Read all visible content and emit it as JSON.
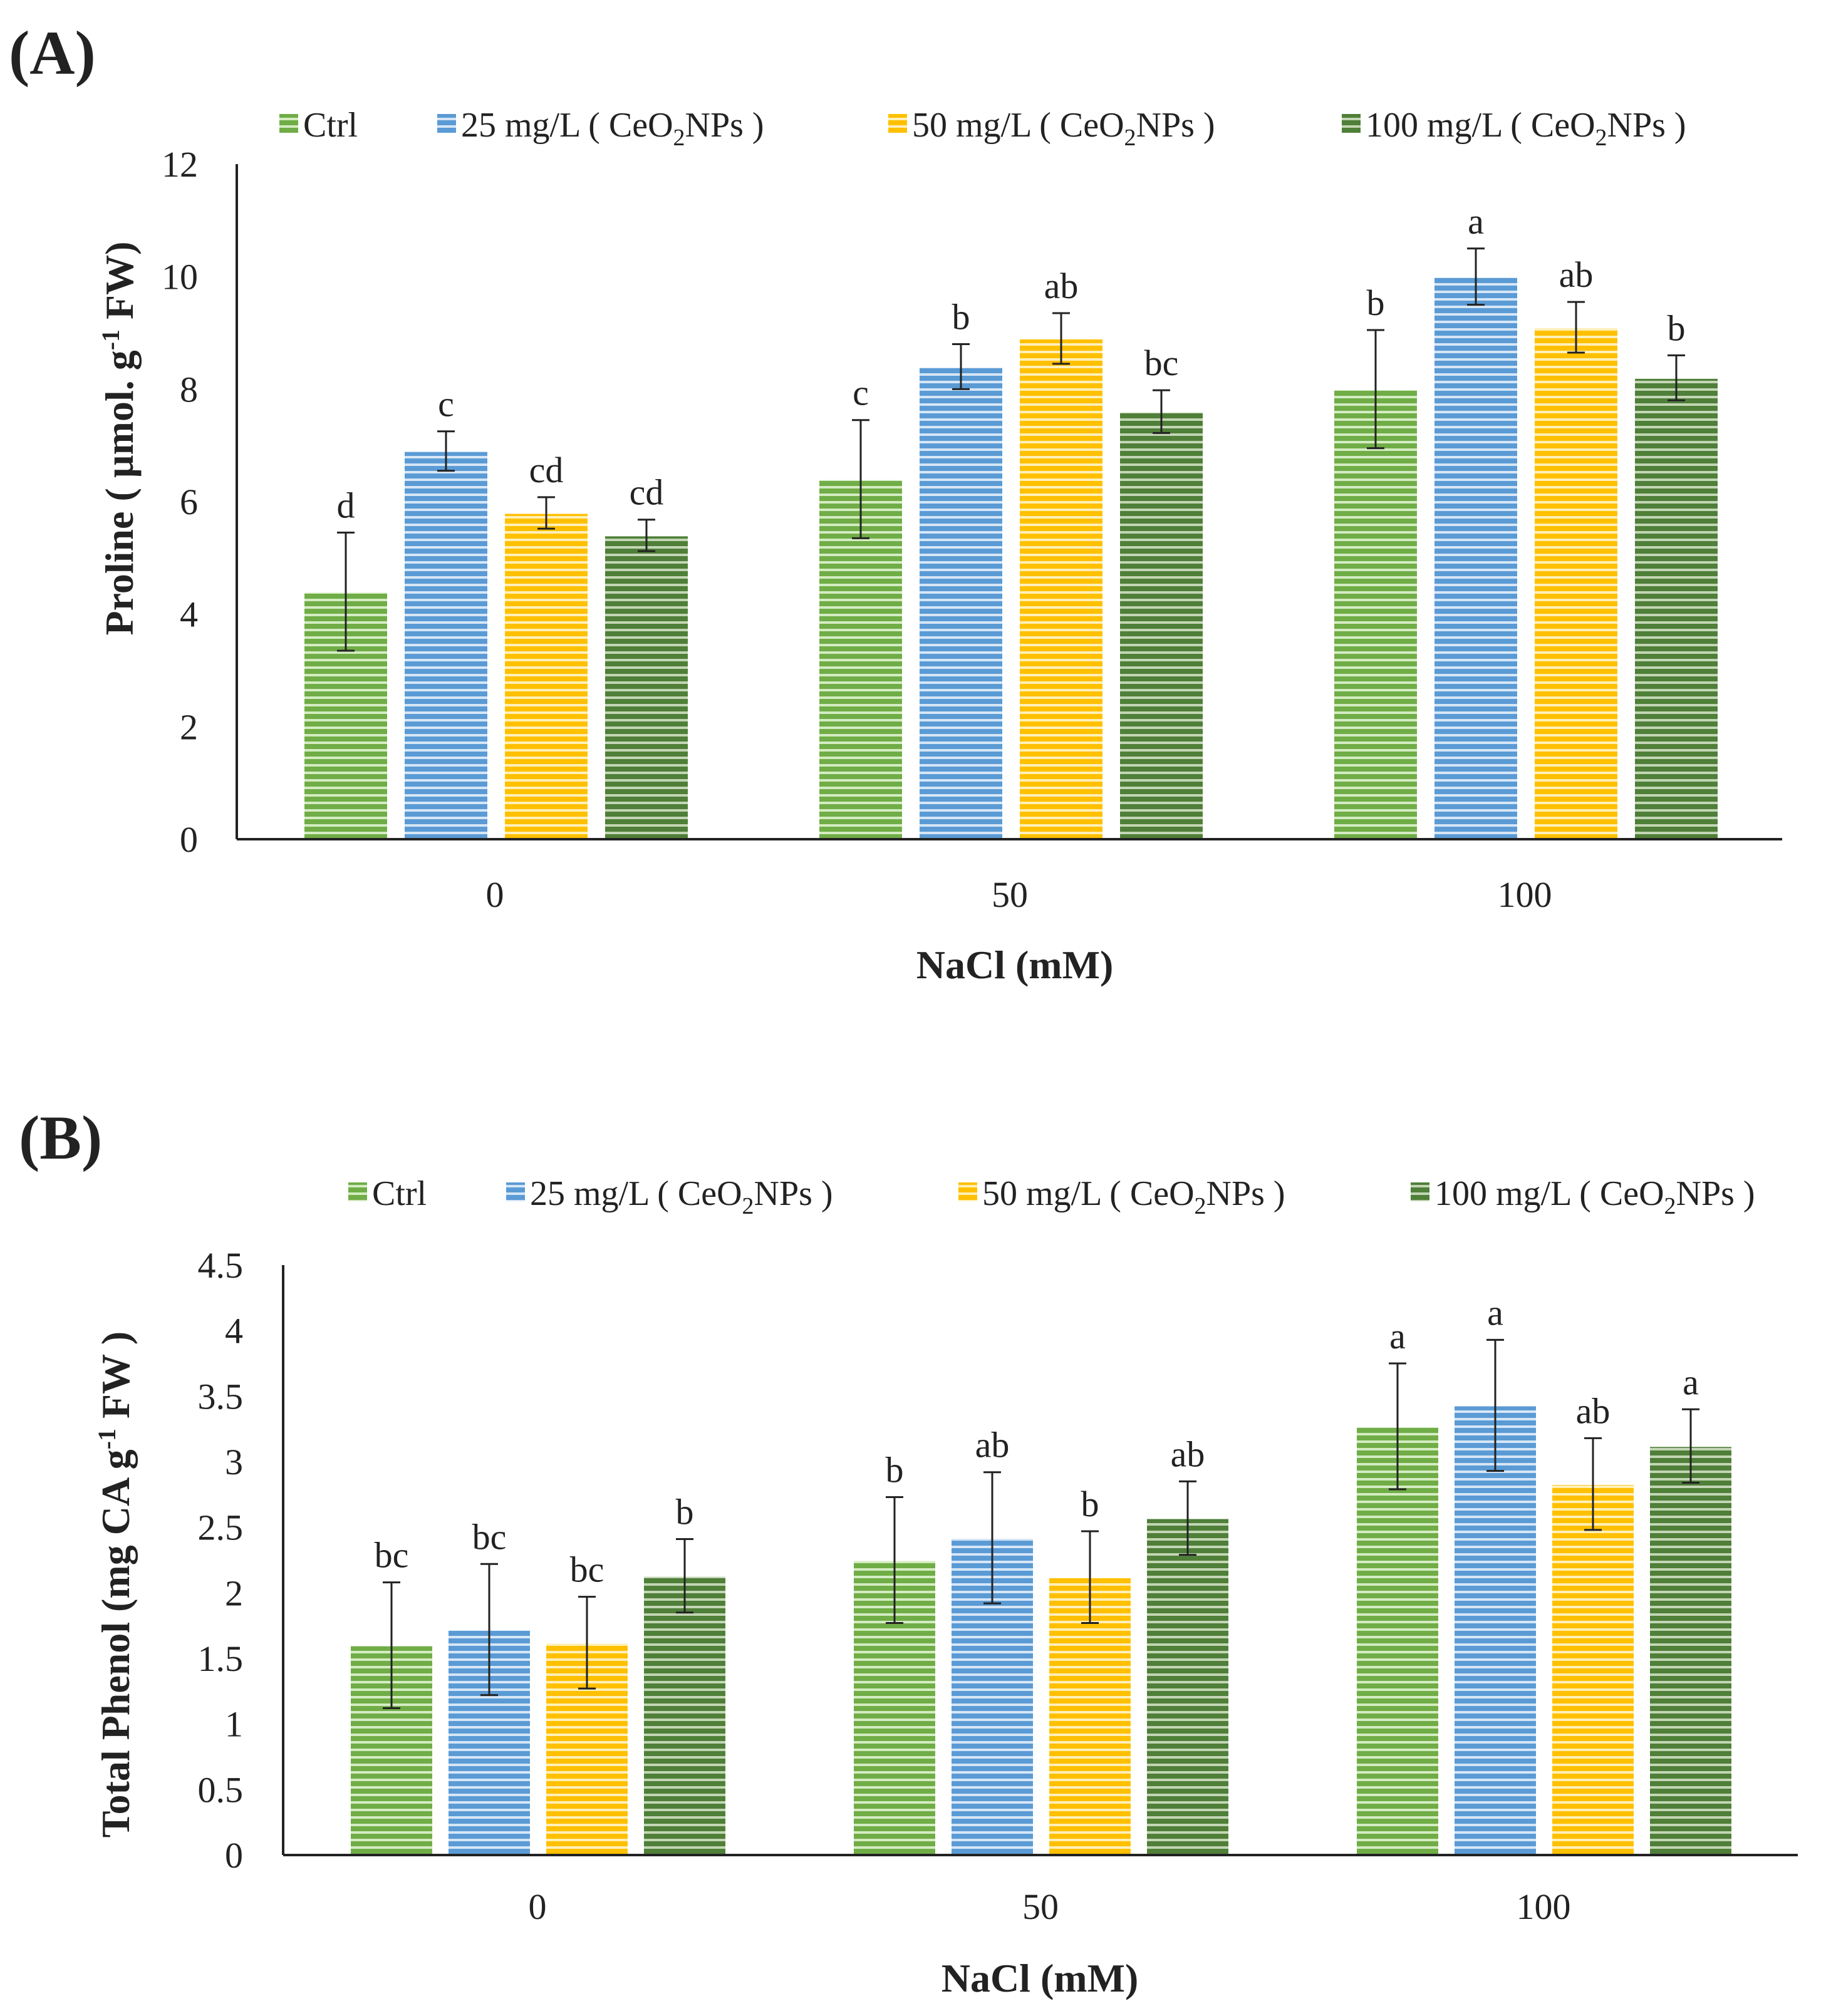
{
  "colors": {
    "ctrl": "#70ad47",
    "d25": "#5b9bd5",
    "d50": "#ffc000",
    "d100": "#4f7f38"
  },
  "chart_data": [
    {
      "panel": "(A)",
      "type": "bar",
      "title": "",
      "xlabel": "NaCl (mM)",
      "ylabel_parts": [
        "Proline ( µmol. g",
        "-1",
        " FW)"
      ],
      "categories": [
        "0",
        "50",
        "100"
      ],
      "ylim": [
        0,
        12
      ],
      "yticks": [
        "0",
        "2",
        "4",
        "6",
        "8",
        "10",
        "12"
      ],
      "legend_position": "top",
      "series": [
        {
          "key": "ctrl",
          "legend_parts": [
            "Ctrl"
          ],
          "values": [
            4.4,
            6.4,
            8.0
          ],
          "errors": [
            1.05,
            1.05,
            1.05
          ],
          "letters": [
            "d",
            "c",
            "b"
          ]
        },
        {
          "key": "d25",
          "legend_parts": [
            "25  mg/L ( CeO",
            "2",
            "NPs )"
          ],
          "values": [
            6.9,
            8.4,
            10.0
          ],
          "errors": [
            0.35,
            0.4,
            0.5
          ],
          "letters": [
            "c",
            "b",
            "a"
          ]
        },
        {
          "key": "d50",
          "legend_parts": [
            "50  mg/L ( CeO",
            "2",
            "NPs )"
          ],
          "values": [
            5.8,
            8.9,
            9.1
          ],
          "errors": [
            0.28,
            0.45,
            0.45
          ],
          "letters": [
            "cd",
            "ab",
            "ab"
          ]
        },
        {
          "key": "d100",
          "legend_parts": [
            "100 mg/L ( CeO",
            "2",
            "NPs )"
          ],
          "values": [
            5.4,
            7.6,
            8.2
          ],
          "errors": [
            0.28,
            0.38,
            0.4
          ],
          "letters": [
            "cd",
            "bc",
            "b"
          ]
        }
      ]
    },
    {
      "panel": "(B)",
      "type": "bar",
      "title": "",
      "xlabel": "NaCl (mM)",
      "ylabel_parts": [
        "Total Phenol (mg CA g",
        "-1",
        " FW )"
      ],
      "categories": [
        "0",
        "50",
        "100"
      ],
      "ylim": [
        0,
        4.5
      ],
      "yticks": [
        "0",
        "0.5",
        "1",
        "1.5",
        "2",
        "2.5",
        "3",
        "3.5",
        "4",
        "4.5"
      ],
      "legend_position": "top",
      "series": [
        {
          "key": "ctrl",
          "legend_parts": [
            "Ctrl"
          ],
          "values": [
            1.6,
            2.25,
            3.27
          ],
          "errors": [
            0.48,
            0.48,
            0.48
          ],
          "letters": [
            "bc",
            "b",
            "a"
          ]
        },
        {
          "key": "d25",
          "legend_parts": [
            "25  mg/L ( CeO",
            "2",
            "NPs )"
          ],
          "values": [
            1.72,
            2.42,
            3.43
          ],
          "errors": [
            0.5,
            0.5,
            0.5
          ],
          "letters": [
            "bc",
            "ab",
            "a"
          ]
        },
        {
          "key": "d50",
          "legend_parts": [
            "50  mg/L ( CeO",
            "2",
            "NPs )"
          ],
          "values": [
            1.62,
            2.12,
            2.83
          ],
          "errors": [
            0.35,
            0.35,
            0.35
          ],
          "letters": [
            "bc",
            "b",
            "ab"
          ]
        },
        {
          "key": "d100",
          "legend_parts": [
            "100 mg/L ( CeO",
            "2",
            "NPs )"
          ],
          "values": [
            2.13,
            2.57,
            3.12
          ],
          "errors": [
            0.28,
            0.28,
            0.28
          ],
          "letters": [
            "b",
            "ab",
            "a"
          ]
        }
      ]
    }
  ]
}
